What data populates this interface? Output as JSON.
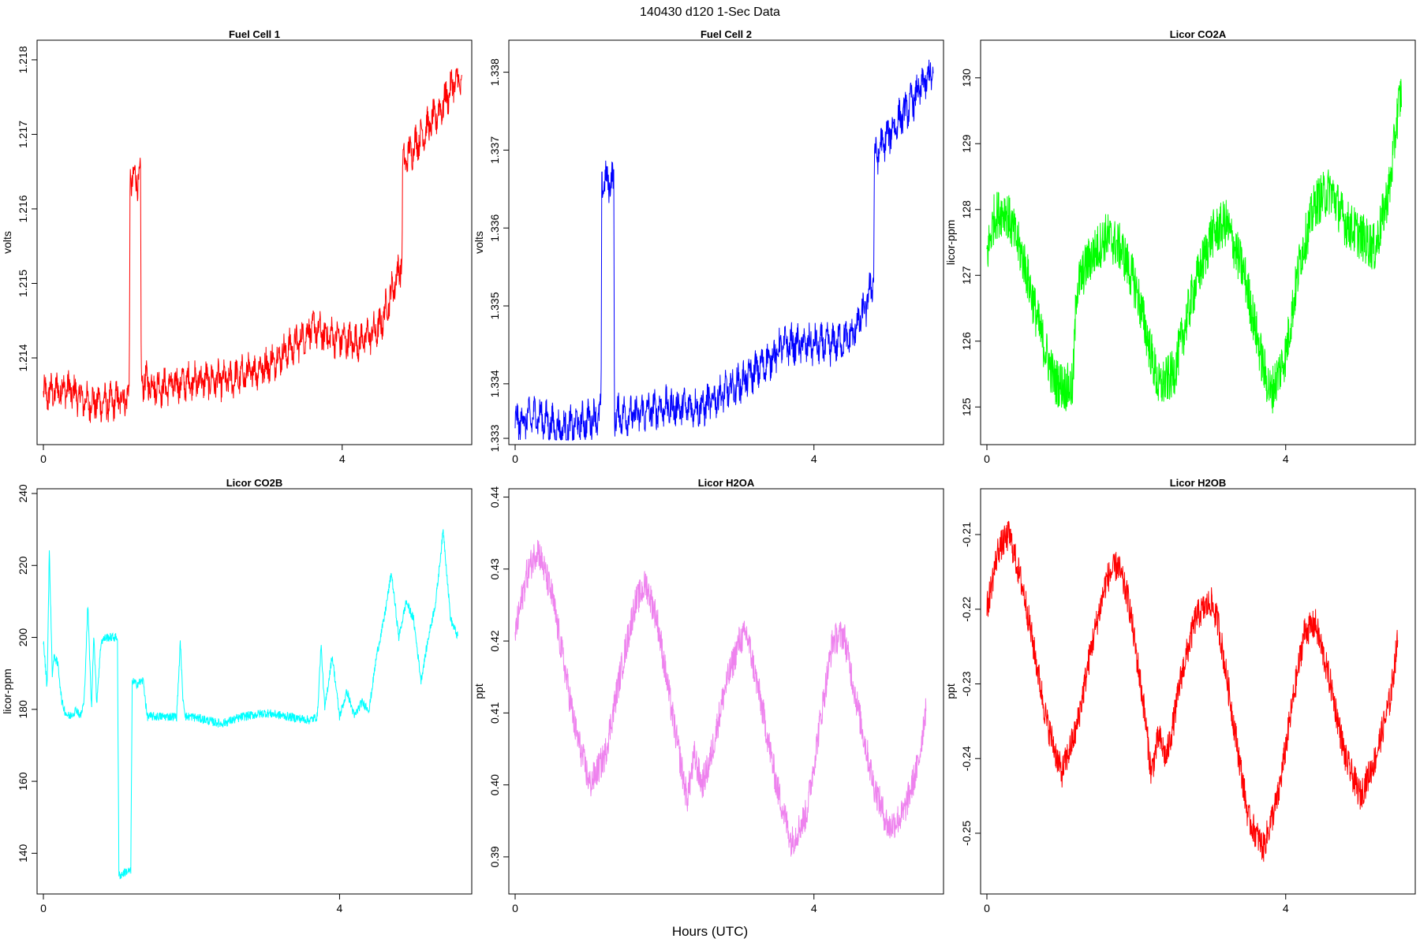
{
  "figure": {
    "title": "140430   d120   1-Sec Data",
    "xlabel": "Hours (UTC)"
  },
  "chart_data": [
    {
      "type": "line",
      "title": "Fuel Cell 1",
      "ylabel": "volts",
      "color": "#ff0000",
      "xlim": [
        0,
        5.65
      ],
      "ylim": [
        1.2129,
        1.2182
      ],
      "xticks": [
        0,
        4
      ],
      "yticks": [
        1.214,
        1.215,
        1.216,
        1.217,
        1.218
      ],
      "yticklabels": [
        "1.214",
        "1.215",
        "1.216",
        "1.217",
        "1.218"
      ],
      "noise": 0.00035,
      "osc_period": 0.08,
      "x": [
        0.0,
        0.3,
        0.6,
        0.9,
        1.15,
        1.16,
        1.3,
        1.31,
        1.6,
        2.0,
        2.5,
        3.0,
        3.4,
        3.6,
        3.8,
        4.2,
        4.5,
        4.7,
        4.8,
        4.81,
        5.0,
        5.3,
        5.5,
        5.6
      ],
      "y": [
        1.2135,
        1.2136,
        1.2134,
        1.2134,
        1.2135,
        1.2164,
        1.2164,
        1.2137,
        1.2136,
        1.2137,
        1.2137,
        1.2139,
        1.2142,
        1.2144,
        1.2143,
        1.2142,
        1.2144,
        1.215,
        1.2153,
        1.2166,
        1.2169,
        1.2173,
        1.2177,
        1.2177
      ]
    },
    {
      "type": "line",
      "title": "Fuel Cell 2",
      "ylabel": "volts",
      "color": "#0000ff",
      "xlim": [
        0,
        5.65
      ],
      "ylim": [
        1.33328,
        1.33835
      ],
      "xticks": [
        0,
        4
      ],
      "yticks": [
        1.3333,
        1.334,
        1.335,
        1.336,
        1.337,
        1.338
      ],
      "yticklabels": [
        "1.333",
        "1.334",
        "1.335",
        "1.336",
        "1.337",
        "1.338"
      ],
      "noise": 0.00035,
      "osc_period": 0.08,
      "x": [
        0.0,
        0.3,
        0.6,
        0.9,
        1.15,
        1.16,
        1.32,
        1.33,
        1.6,
        2.0,
        2.5,
        3.0,
        3.4,
        3.6,
        3.8,
        4.2,
        4.5,
        4.7,
        4.8,
        4.81,
        5.0,
        5.3,
        5.5,
        5.6
      ],
      "y": [
        1.3335,
        1.3336,
        1.3334,
        1.3335,
        1.3336,
        1.3366,
        1.3366,
        1.3336,
        1.3336,
        1.3337,
        1.3337,
        1.334,
        1.3343,
        1.3345,
        1.3345,
        1.3345,
        1.3346,
        1.335,
        1.3354,
        1.3369,
        1.3372,
        1.3376,
        1.3379,
        1.338
      ]
    },
    {
      "type": "line",
      "title": "Licor CO2A",
      "ylabel": "licor-ppm",
      "color": "#00ff00",
      "xlim": [
        0,
        5.65
      ],
      "ylim": [
        124.5,
        130.5
      ],
      "xticks": [
        0,
        4
      ],
      "yticks": [
        125,
        126,
        127,
        128,
        129,
        130
      ],
      "yticklabels": [
        "125",
        "126",
        "127",
        "128",
        "129",
        "130"
      ],
      "noise": 0.75,
      "osc_period": 0,
      "x": [
        0.0,
        0.1,
        0.25,
        0.5,
        0.7,
        0.9,
        1.05,
        1.15,
        1.2,
        1.35,
        1.6,
        1.8,
        2.0,
        2.2,
        2.3,
        2.5,
        2.75,
        3.0,
        3.2,
        3.45,
        3.7,
        3.8,
        4.0,
        4.2,
        4.4,
        4.6,
        4.8,
        5.0,
        5.2,
        5.4,
        5.5,
        5.55
      ],
      "y": [
        127.3,
        127.9,
        128.0,
        127.2,
        126.2,
        125.4,
        125.3,
        125.3,
        126.8,
        127.2,
        127.6,
        127.4,
        126.8,
        125.8,
        125.3,
        125.5,
        126.7,
        127.6,
        127.8,
        127.0,
        125.6,
        125.2,
        125.8,
        127.3,
        128.1,
        128.3,
        127.8,
        127.6,
        127.4,
        128.4,
        129.5,
        129.8
      ]
    },
    {
      "type": "line",
      "title": "Licor CO2B",
      "ylabel": "licor-ppm",
      "color": "#00ffff",
      "xlim": [
        0,
        5.7
      ],
      "ylim": [
        130,
        240
      ],
      "xticks": [
        0,
        4
      ],
      "yticks": [
        140,
        160,
        180,
        200,
        220,
        240
      ],
      "yticklabels": [
        "140",
        "160",
        "180",
        "200",
        "220",
        "240"
      ],
      "noise": 2.5,
      "osc_period": 0,
      "x": [
        0.0,
        0.05,
        0.08,
        0.12,
        0.15,
        0.2,
        0.25,
        0.3,
        0.35,
        0.4,
        0.45,
        0.5,
        0.55,
        0.6,
        0.65,
        0.68,
        0.72,
        0.78,
        0.85,
        0.95,
        1.0,
        1.02,
        1.05,
        1.12,
        1.18,
        1.2,
        1.25,
        1.35,
        1.4,
        1.5,
        1.8,
        1.85,
        1.88,
        1.92,
        2.0,
        2.2,
        2.4,
        2.7,
        3.0,
        3.3,
        3.6,
        3.7,
        3.75,
        3.8,
        3.9,
        4.0,
        4.1,
        4.2,
        4.3,
        4.4,
        4.5,
        4.6,
        4.7,
        4.8,
        4.9,
        5.0,
        5.1,
        5.2,
        5.3,
        5.4,
        5.5,
        5.6
      ],
      "y": [
        199,
        186,
        224,
        190,
        195,
        192,
        182,
        179,
        178,
        179,
        180,
        178,
        182,
        209,
        180,
        201,
        182,
        199,
        200,
        200,
        200,
        134,
        134,
        135,
        135,
        188,
        187,
        188,
        178,
        178,
        178,
        199,
        184,
        178,
        178,
        177,
        176,
        178,
        179,
        178,
        177,
        178,
        198,
        180,
        195,
        178,
        185,
        178,
        182,
        180,
        195,
        205,
        218,
        200,
        210,
        205,
        188,
        200,
        210,
        230,
        205,
        200
      ]
    },
    {
      "type": "line",
      "title": "Licor H2OA",
      "ylabel": "ppt",
      "color": "#ee82ee",
      "xlim": [
        0,
        5.65
      ],
      "ylim": [
        0.3855,
        0.4405
      ],
      "xticks": [
        0,
        4
      ],
      "yticks": [
        0.39,
        0.4,
        0.41,
        0.42,
        0.43,
        0.44
      ],
      "yticklabels": [
        "0.39",
        "0.40",
        "0.41",
        "0.42",
        "0.43",
        "0.44"
      ],
      "noise": 0.0045,
      "osc_period": 0,
      "x": [
        0.0,
        0.15,
        0.3,
        0.5,
        0.8,
        1.0,
        1.2,
        1.4,
        1.6,
        1.75,
        1.9,
        2.1,
        2.3,
        2.4,
        2.5,
        2.6,
        2.8,
        3.0,
        3.1,
        3.3,
        3.5,
        3.7,
        3.9,
        4.1,
        4.25,
        4.4,
        4.6,
        4.8,
        5.0,
        5.2,
        5.4,
        5.5
      ],
      "y": [
        0.421,
        0.429,
        0.433,
        0.426,
        0.408,
        0.4,
        0.404,
        0.415,
        0.425,
        0.428,
        0.423,
        0.41,
        0.398,
        0.404,
        0.4,
        0.403,
        0.413,
        0.42,
        0.421,
        0.411,
        0.4,
        0.392,
        0.396,
        0.41,
        0.42,
        0.421,
        0.41,
        0.4,
        0.394,
        0.396,
        0.403,
        0.411
      ]
    },
    {
      "type": "line",
      "title": "Licor H2OB",
      "ylabel": "ppt",
      "color": "#ff0000",
      "xlim": [
        0,
        5.65
      ],
      "ylim": [
        -0.2575,
        -0.2045
      ],
      "xticks": [
        0,
        4
      ],
      "yticks": [
        -0.25,
        -0.24,
        -0.23,
        -0.22,
        -0.21
      ],
      "yticklabels": [
        "-0.25",
        "-0.24",
        "-0.23",
        "-0.22",
        "-0.21"
      ],
      "noise": 0.0042,
      "osc_period": 0,
      "x": [
        0.0,
        0.15,
        0.3,
        0.5,
        0.8,
        1.0,
        1.2,
        1.4,
        1.6,
        1.75,
        1.9,
        2.1,
        2.2,
        2.3,
        2.4,
        2.5,
        2.6,
        2.8,
        3.0,
        3.1,
        3.3,
        3.5,
        3.7,
        3.9,
        4.1,
        4.25,
        4.4,
        4.6,
        4.8,
        5.0,
        5.2,
        5.4,
        5.5
      ],
      "y": [
        -0.22,
        -0.212,
        -0.21,
        -0.218,
        -0.235,
        -0.242,
        -0.236,
        -0.225,
        -0.216,
        -0.214,
        -0.219,
        -0.233,
        -0.242,
        -0.237,
        -0.24,
        -0.235,
        -0.229,
        -0.221,
        -0.219,
        -0.222,
        -0.235,
        -0.248,
        -0.252,
        -0.245,
        -0.232,
        -0.223,
        -0.222,
        -0.23,
        -0.24,
        -0.245,
        -0.24,
        -0.232,
        -0.224
      ]
    }
  ]
}
